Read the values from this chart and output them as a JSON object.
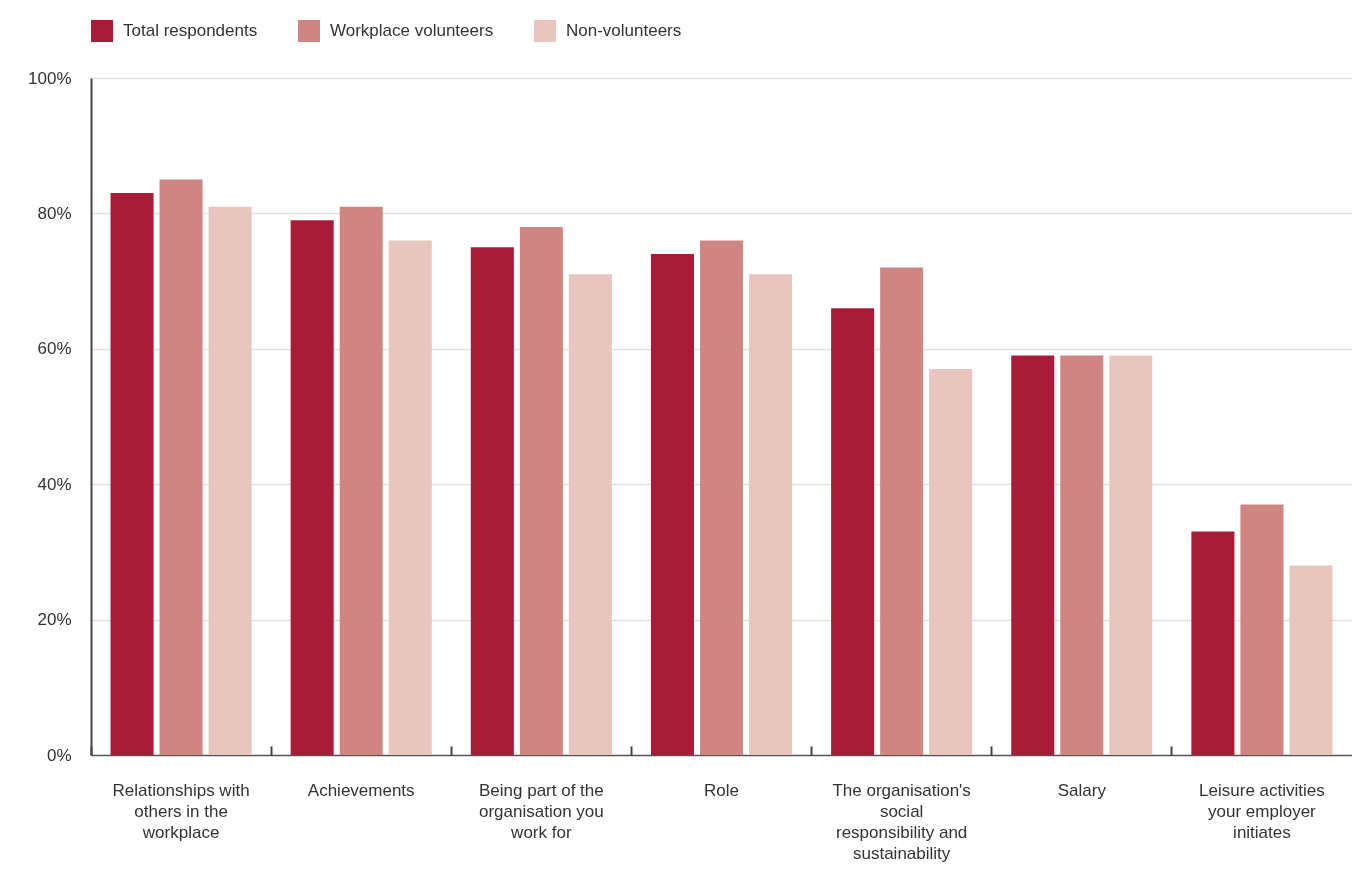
{
  "chart_data": {
    "type": "bar",
    "categories": [
      "Relationships with others in the workplace",
      "Achievements",
      "Being part of the organisation you work for",
      "Role",
      "The organisation's social responsibility and sustainability",
      "Salary",
      "Leisure activities your employer initiates"
    ],
    "series": [
      {
        "name": "Total respondents",
        "color": "#a81c38",
        "values": [
          83,
          79,
          75,
          74,
          66,
          59,
          33
        ]
      },
      {
        "name": "Workplace volunteers",
        "color": "#cf8581",
        "values": [
          85,
          81,
          78,
          76,
          72,
          59,
          37
        ]
      },
      {
        "name": "Non-volunteers",
        "color": "#e9c5bf",
        "values": [
          81,
          76,
          71,
          71,
          57,
          59,
          28
        ]
      }
    ],
    "ylim": [
      0,
      100
    ],
    "yticks": [
      {
        "value": 0,
        "label": "0%"
      },
      {
        "value": 20,
        "label": "20%"
      },
      {
        "value": 40,
        "label": "40%"
      },
      {
        "value": 60,
        "label": "60%"
      },
      {
        "value": 80,
        "label": "80%"
      },
      {
        "value": 100,
        "label": "100%"
      }
    ],
    "grid": "y",
    "legend": "top left"
  }
}
